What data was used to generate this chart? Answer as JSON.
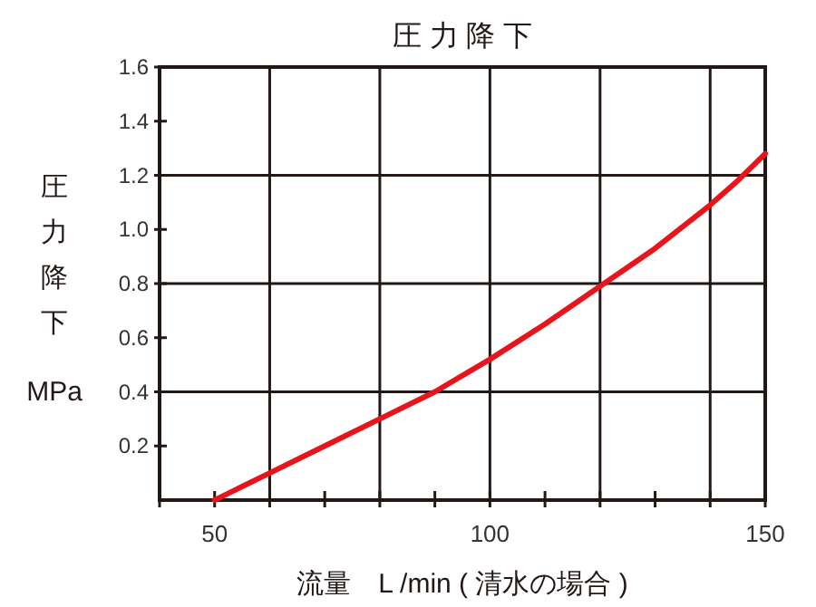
{
  "chart_data": {
    "type": "line",
    "title": "圧 力 降 下",
    "xlabel": "流量　L /min ( 清水の場合 )",
    "ylabel": "圧力降下 MPa",
    "x": [
      50,
      55,
      60,
      70,
      80,
      90,
      100,
      110,
      120,
      130,
      140,
      145,
      150
    ],
    "series": [
      {
        "color": "#e8141c",
        "values": [
          0,
          0.05,
          0.1,
          0.2,
          0.3,
          0.4,
          0.52,
          0.65,
          0.79,
          0.93,
          1.09,
          1.18,
          1.28
        ]
      }
    ],
    "xlim": [
      40,
      150
    ],
    "ylim": [
      0,
      1.6
    ],
    "xticks": [
      {
        "value": 40,
        "label": null
      },
      50,
      {
        "value": 60,
        "label": null
      },
      {
        "value": 70,
        "label": null
      },
      {
        "value": 80,
        "label": null
      },
      {
        "value": 90,
        "label": null
      },
      100,
      {
        "value": 110,
        "label": null
      },
      {
        "value": 120,
        "label": null
      },
      {
        "value": 130,
        "label": null
      },
      {
        "value": 140,
        "label": null
      },
      150
    ],
    "yticks": [
      {
        "value": 0.2,
        "label": "0.2"
      },
      {
        "value": 0.4,
        "label": "0.4"
      },
      {
        "value": 0.6,
        "label": "0.6"
      },
      {
        "value": 0.8,
        "label": "0.8"
      },
      {
        "value": 1.0,
        "label": "1.0"
      },
      {
        "value": 1.2,
        "label": "1.2"
      },
      {
        "value": 1.4,
        "label": "1.4"
      },
      {
        "value": 1.6,
        "label": "1.6"
      }
    ],
    "ref_lines": [
      {
        "axis": "x",
        "value": 60
      },
      {
        "axis": "x",
        "value": 80
      },
      {
        "axis": "x",
        "value": 100
      },
      {
        "axis": "x",
        "value": 120
      },
      {
        "axis": "x",
        "value": 140
      },
      {
        "axis": "y",
        "value": 0.4
      },
      {
        "axis": "y",
        "value": 0.8
      },
      {
        "axis": "y",
        "value": 1.2
      }
    ],
    "grid": false,
    "marker": "none",
    "line_style": "solid"
  }
}
